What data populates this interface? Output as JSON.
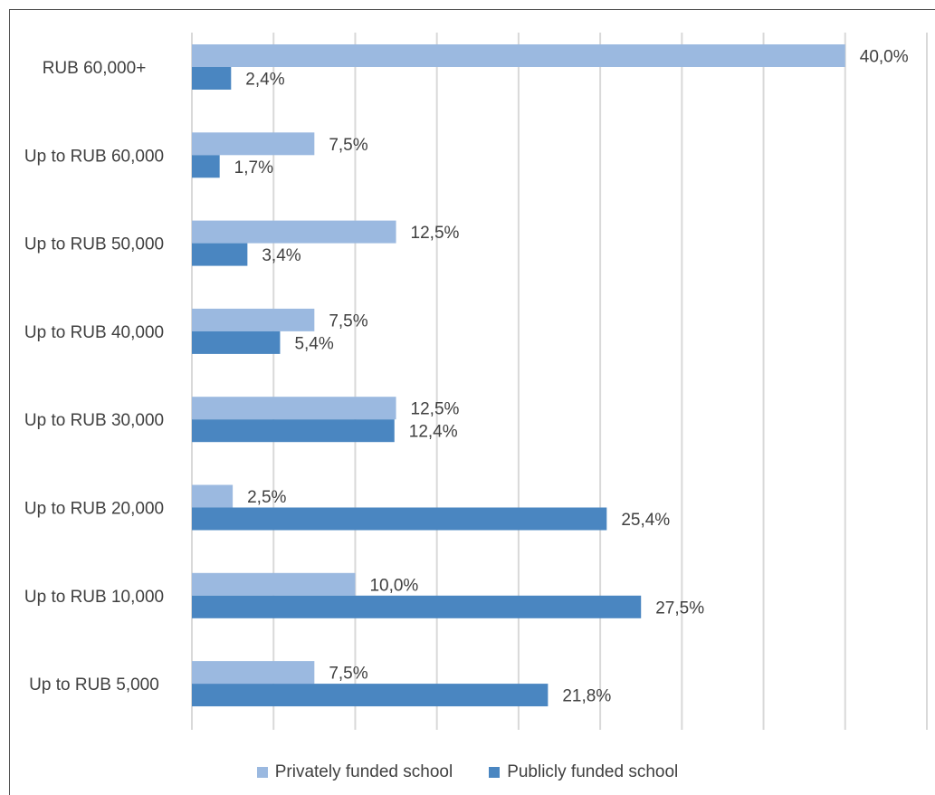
{
  "chart_data": {
    "type": "bar",
    "orientation": "horizontal",
    "categories": [
      "RUB 60,000+",
      "Up to RUB 60,000",
      "Up to RUB 50,000",
      "Up to RUB 40,000",
      "Up to RUB 30,000",
      "Up to RUB 20,000",
      "Up to RUB 10,000",
      "Up to RUB 5,000"
    ],
    "series": [
      {
        "name": "Privately funded school",
        "color": "#9bb9e0",
        "values": [
          40.0,
          7.5,
          12.5,
          7.5,
          12.5,
          2.5,
          10.0,
          7.5
        ],
        "labels": [
          "40,0%",
          "7,5%",
          "12,5%",
          "7,5%",
          "12,5%",
          "2,5%",
          "10,0%",
          "7,5%"
        ]
      },
      {
        "name": "Publicly funded school",
        "color": "#4a86c1",
        "values": [
          2.4,
          1.7,
          3.4,
          5.4,
          12.4,
          25.4,
          27.5,
          21.8
        ],
        "labels": [
          "2,4%",
          "1,7%",
          "3,4%",
          "5,4%",
          "12,4%",
          "25,4%",
          "27,5%",
          "21,8%"
        ]
      }
    ],
    "xlim": [
      0,
      45
    ],
    "grid": true,
    "grid_step": 5,
    "legend_position": "bottom"
  }
}
